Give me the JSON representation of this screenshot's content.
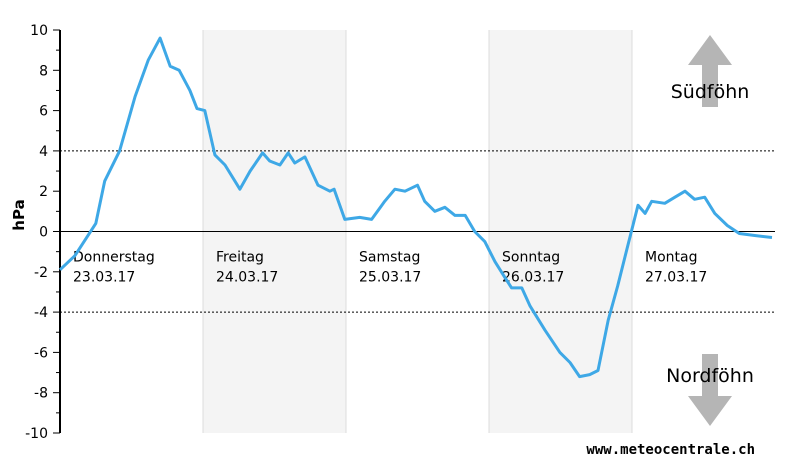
{
  "chart_data": {
    "type": "line",
    "ylabel": "hPa",
    "xlim": [
      0,
      120
    ],
    "ylim": [
      -10,
      10
    ],
    "yticks": [
      -10,
      -8,
      -6,
      -4,
      -2,
      0,
      2,
      4,
      6,
      8,
      10
    ],
    "reference_lines": [
      4,
      -4
    ],
    "days": [
      {
        "name": "Donnerstag",
        "date": "23.03.17"
      },
      {
        "name": "Freitag",
        "date": "24.03.17"
      },
      {
        "name": "Samstag",
        "date": "25.03.17"
      },
      {
        "name": "Sonntag",
        "date": "26.03.17"
      },
      {
        "name": "Montag",
        "date": "27.03.17"
      }
    ],
    "annotations": [
      "Südföhn",
      "Nordföhn"
    ],
    "source": "www.meteocentrale.ch",
    "color": "#3ea8e6",
    "x": [
      0,
      2.5,
      6,
      7.5,
      10,
      12.6,
      14.8,
      16.8,
      18.5,
      20,
      21.8,
      23,
      24.3,
      26,
      27.7,
      30.2,
      31.9,
      34,
      35.2,
      36.9,
      38.3,
      39.4,
      41.1,
      43.3,
      45.3,
      46,
      47.8,
      50.3,
      52.3,
      54.5,
      56.2,
      57.9,
      60,
      61.2,
      62.9,
      64.6,
      66.3,
      68,
      69.6,
      71.3,
      73,
      74.7,
      75.8,
      77.5,
      78.9,
      81.4,
      83.9,
      85.6,
      87.2,
      88.9,
      90.3,
      92,
      93.6,
      95.3,
      97,
      98.2,
      99.3,
      101.5,
      103.2,
      104.9,
      106.5,
      108.2,
      109.9,
      112,
      114,
      116.6,
      119.5
    ],
    "values": [
      -1.9,
      -1.2,
      0.4,
      2.5,
      4.0,
      6.7,
      8.5,
      9.6,
      8.2,
      8.0,
      7.0,
      6.1,
      6.0,
      3.8,
      3.3,
      2.1,
      3.0,
      3.9,
      3.5,
      3.3,
      3.9,
      3.4,
      3.7,
      2.3,
      2.0,
      2.1,
      0.6,
      0.7,
      0.6,
      1.5,
      2.1,
      2.0,
      2.3,
      1.5,
      1.0,
      1.2,
      0.8,
      0.8,
      0,
      -0.5,
      -1.5,
      -2.3,
      -2.8,
      -2.8,
      -3.7,
      -4.9,
      -6.0,
      -6.5,
      -7.2,
      -7.1,
      -6.9,
      -4.4,
      -2.7,
      -0.7,
      1.3,
      0.9,
      1.5,
      1.4,
      1.7,
      2.0,
      1.6,
      1.7,
      0.9,
      0.3,
      -0.1,
      -0.2,
      -0.3
    ]
  }
}
